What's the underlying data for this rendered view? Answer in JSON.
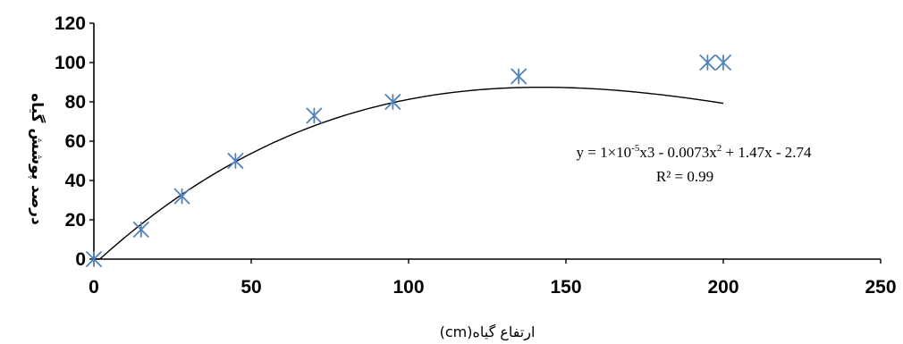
{
  "chart_data": {
    "type": "scatter",
    "xlabel": "ارتفاع گیاه(cm)",
    "ylabel": "درصد پوشش گیاه",
    "xlim": [
      0,
      250
    ],
    "ylim": [
      0,
      120
    ],
    "x_ticks": [
      "0",
      "50",
      "100",
      "150",
      "200",
      "250"
    ],
    "y_ticks": [
      "0",
      "20",
      "40",
      "60",
      "80",
      "100",
      "120"
    ],
    "grid": false,
    "marker": "asterisk",
    "marker_color": "#4F81BD",
    "trendline_color": "#000000",
    "points": [
      {
        "x": 0,
        "y": 0
      },
      {
        "x": 15,
        "y": 15
      },
      {
        "x": 28,
        "y": 32
      },
      {
        "x": 45,
        "y": 50
      },
      {
        "x": 70,
        "y": 73
      },
      {
        "x": 95,
        "y": 80
      },
      {
        "x": 135,
        "y": 93
      },
      {
        "x": 195,
        "y": 100
      },
      {
        "x": 200,
        "y": 100
      }
    ],
    "annotation": {
      "equation_prefix": "y = 1×10",
      "equation_exponent": "-5",
      "equation_middle": "x3 - 0.0073x",
      "equation_square": "2",
      "equation_suffix": " + 1.47x - 2.74",
      "r_squared": "R² = 0.99"
    }
  }
}
